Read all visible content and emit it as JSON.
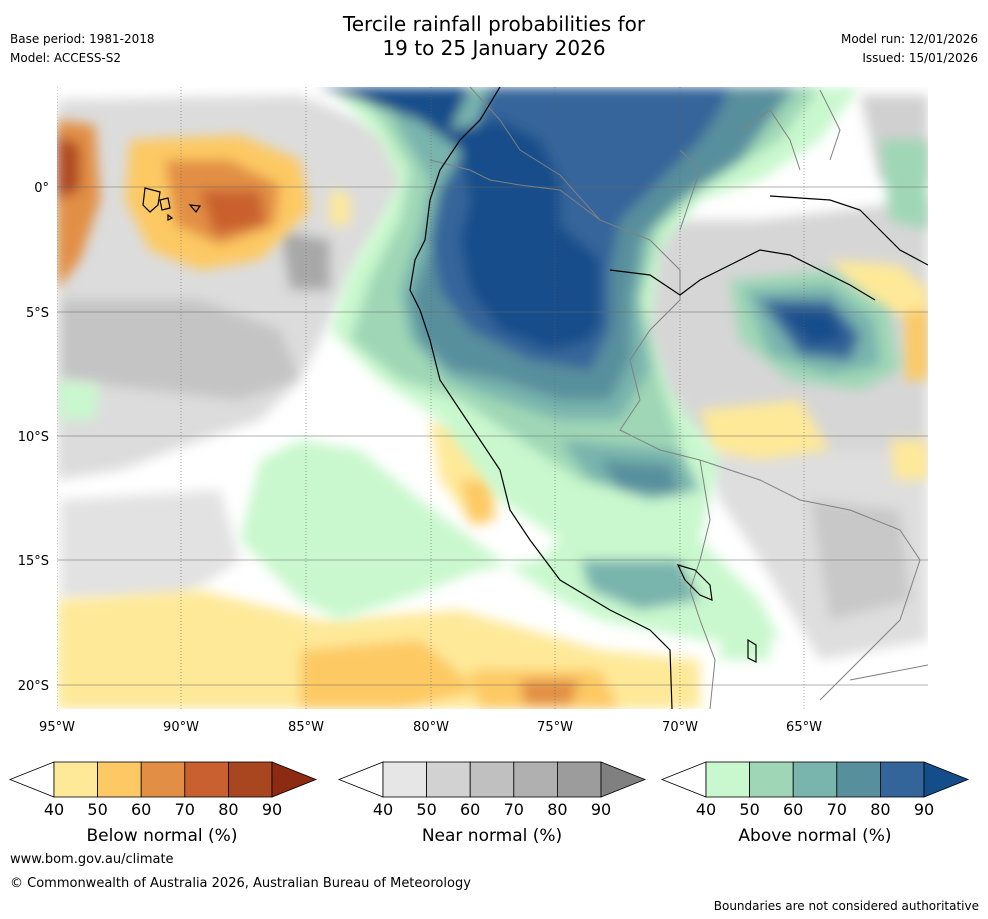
{
  "header": {
    "title_line1": "Tercile rainfall probabilities for",
    "title_line2": "19 to 25 January 2026",
    "base_period": "Base period: 1981-2018",
    "model": "Model: ACCESS-S2",
    "model_run": "Model run: 12/01/2026",
    "issued": "Issued: 15/01/2026"
  },
  "map": {
    "lon_labels": [
      "95°W",
      "90°W",
      "85°W",
      "80°W",
      "75°W",
      "70°W",
      "65°W"
    ],
    "lat_labels": [
      "0°",
      "5°S",
      "10°S",
      "15°S",
      "20°S"
    ]
  },
  "legends": [
    {
      "title": "Below normal (%)",
      "ticks": [
        "40",
        "50",
        "60",
        "70",
        "80",
        "90"
      ],
      "colors": [
        "#ffffff",
        "#fee999",
        "#fdc964",
        "#e28f45",
        "#c9602f",
        "#a8461f",
        "#8c2a12"
      ]
    },
    {
      "title": "Near normal (%)",
      "ticks": [
        "40",
        "50",
        "60",
        "70",
        "80",
        "90"
      ],
      "colors": [
        "#ffffff",
        "#e6e6e6",
        "#d2d2d2",
        "#c0c0c0",
        "#b0b0b0",
        "#9c9c9c",
        "#808080"
      ]
    },
    {
      "title": "Above normal (%)",
      "ticks": [
        "40",
        "50",
        "60",
        "70",
        "80",
        "90"
      ],
      "colors": [
        "#ffffff",
        "#c9f8ce",
        "#9fd7b6",
        "#79b4ad",
        "#588f9d",
        "#34659a",
        "#154d8a"
      ]
    }
  ],
  "footer": {
    "website": "www.bom.gov.au/climate",
    "copyright": "© Commonwealth of Australia 2026, Australian Bureau of Meteorology",
    "disclaimer": "Boundaries are not considered authoritative"
  }
}
